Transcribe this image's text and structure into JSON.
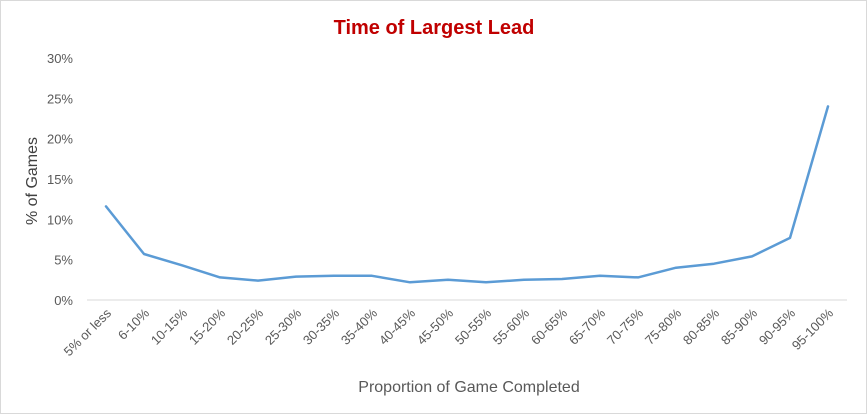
{
  "chart_data": {
    "type": "line",
    "title": "Time of Largest Lead",
    "xlabel": "Proportion of Game Completed",
    "ylabel": "% of Games",
    "ylim": [
      0,
      30
    ],
    "yticks": [
      "0%",
      "5%",
      "10%",
      "15%",
      "20%",
      "25%",
      "30%"
    ],
    "grid": false,
    "categories": [
      "5% or less",
      "6-10%",
      "10-15%",
      "15-20%",
      "20-25%",
      "25-30%",
      "30-35%",
      "35-40%",
      "40-45%",
      "45-50%",
      "50-55%",
      "55-60%",
      "60-65%",
      "65-70%",
      "70-75%",
      "75-80%",
      "80-85%",
      "85-90%",
      "90-95%",
      "95-100%"
    ],
    "series": [
      {
        "values": [
          11.6,
          5.7,
          4.3,
          2.8,
          2.4,
          2.9,
          3.0,
          3.0,
          2.2,
          2.5,
          2.2,
          2.5,
          2.6,
          3.0,
          2.8,
          4.0,
          4.5,
          5.4,
          7.7,
          24.0
        ],
        "color": "#5b9bd5"
      }
    ]
  }
}
